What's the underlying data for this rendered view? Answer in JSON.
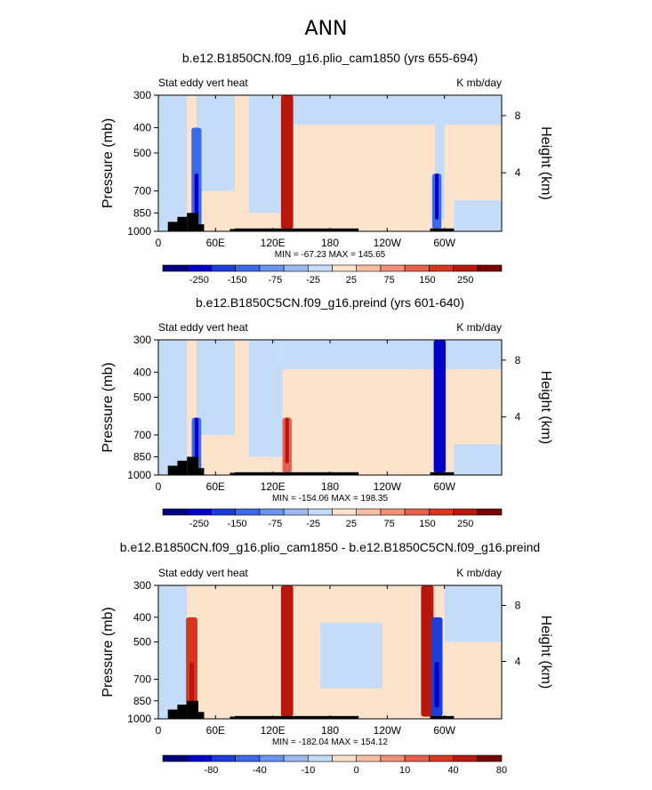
{
  "page": {
    "title": "ANN"
  },
  "colors": {
    "palette": [
      "#00007f",
      "#0000c8",
      "#1a3ed6",
      "#3b6ae8",
      "#6a94ef",
      "#9bb8f3",
      "#c5dcf9",
      "#fde2cc",
      "#f9bfa2",
      "#f29078",
      "#e8604a",
      "#d8361f",
      "#b8170c",
      "#7a0000"
    ],
    "land": "#000000"
  },
  "chart_data": [
    {
      "type": "heatmap",
      "title": "b.e12.B1850CN.f09_g16.plio_cam1850 (yrs 655-694)",
      "left_label": "Stat eddy vert heat",
      "right_label": "K mb/day",
      "ylabel": "Pressure (mb)",
      "ylabel_right": "Height (km)",
      "yticks": [
        300,
        400,
        500,
        700,
        850,
        1000
      ],
      "yticks_right": [
        4,
        8
      ],
      "xticks": [
        "0",
        "60E",
        "120E",
        "180",
        "120W",
        "60W"
      ],
      "xlim": [
        0,
        360
      ],
      "stats": "MIN = -67.23   MAX = 145.65",
      "colorbar_labels": [
        "-250",
        "-150",
        "-75",
        "-25",
        "25",
        "75",
        "150",
        "250"
      ],
      "features": [
        {
          "lon": 40,
          "sign": "neg",
          "strength": 0.55
        },
        {
          "lon": 135,
          "sign": "pos",
          "strength": 0.95
        },
        {
          "lon": 292,
          "sign": "neg",
          "strength": 0.4
        }
      ]
    },
    {
      "type": "heatmap",
      "title": "b.e12.B1850C5CN.f09_g16.preind (yrs 601-640)",
      "left_label": "Stat eddy vert heat",
      "right_label": "K mb/day",
      "ylabel": "Pressure (mb)",
      "ylabel_right": "Height (km)",
      "yticks": [
        300,
        400,
        500,
        700,
        850,
        1000
      ],
      "yticks_right": [
        4,
        8
      ],
      "xticks": [
        "0",
        "60E",
        "120E",
        "180",
        "120W",
        "60W"
      ],
      "xlim": [
        0,
        360
      ],
      "stats": "MIN = -154.06   MAX = 198.35",
      "colorbar_labels": [
        "-250",
        "-150",
        "-75",
        "-25",
        "25",
        "75",
        "150",
        "250"
      ],
      "features": [
        {
          "lon": 40,
          "sign": "neg",
          "strength": 0.45
        },
        {
          "lon": 135,
          "sign": "pos",
          "strength": 0.4
        },
        {
          "lon": 295,
          "sign": "neg",
          "strength": 0.9
        }
      ]
    },
    {
      "type": "heatmap",
      "title": "b.e12.B1850CN.f09_g16.plio_cam1850 - b.e12.B1850C5CN.f09_g16.preind",
      "left_label": "Stat eddy vert heat",
      "right_label": "K mb/day",
      "ylabel": "Pressure (mb)",
      "ylabel_right": "Height (km)",
      "yticks": [
        300,
        400,
        500,
        700,
        850,
        1000
      ],
      "yticks_right": [
        4,
        8
      ],
      "xticks": [
        "0",
        "60E",
        "120E",
        "180",
        "120W",
        "60W"
      ],
      "xlim": [
        0,
        360
      ],
      "stats": "MIN = -182.04   MAX = 154.12",
      "colorbar_labels": [
        "-80",
        "-40",
        "-10",
        "0",
        "10",
        "40",
        "80"
      ],
      "features": [
        {
          "lon": 35,
          "sign": "pos",
          "strength": 0.8
        },
        {
          "lon": 135,
          "sign": "pos",
          "strength": 0.95
        },
        {
          "lon": 282,
          "sign": "pos",
          "strength": 1.0
        },
        {
          "lon": 292,
          "sign": "neg",
          "strength": 0.8
        }
      ]
    }
  ]
}
